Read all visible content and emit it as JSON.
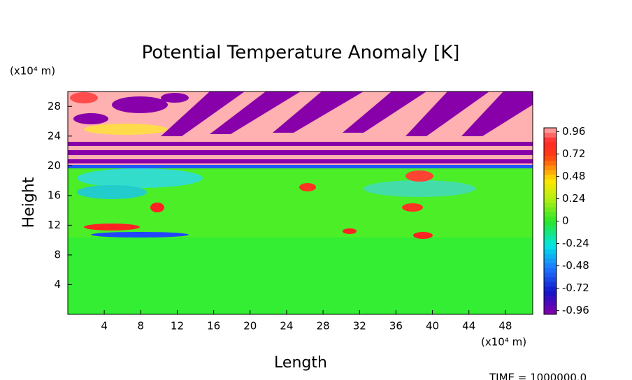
{
  "chart_data": {
    "type": "heatmap",
    "title": "Potential Temperature Anomaly [K]",
    "x_label": "Length",
    "y_label": "Height",
    "x_unit": "(x10⁴ m)",
    "y_unit": "(x10⁴ m)",
    "footer": "TIME = 1000000.0",
    "xlim": [
      0,
      51
    ],
    "xticks": [
      4,
      8,
      12,
      16,
      20,
      24,
      28,
      32,
      36,
      40,
      44,
      48
    ],
    "ylim": [
      0,
      30
    ],
    "yticks": [
      4,
      8,
      12,
      16,
      20,
      24,
      28
    ],
    "colorbar": {
      "lim": [
        -1,
        1
      ],
      "ticks": [
        0.96,
        0.72,
        0.48,
        0.24,
        0,
        -0.24,
        -0.48,
        -0.72,
        -0.96
      ]
    }
  }
}
